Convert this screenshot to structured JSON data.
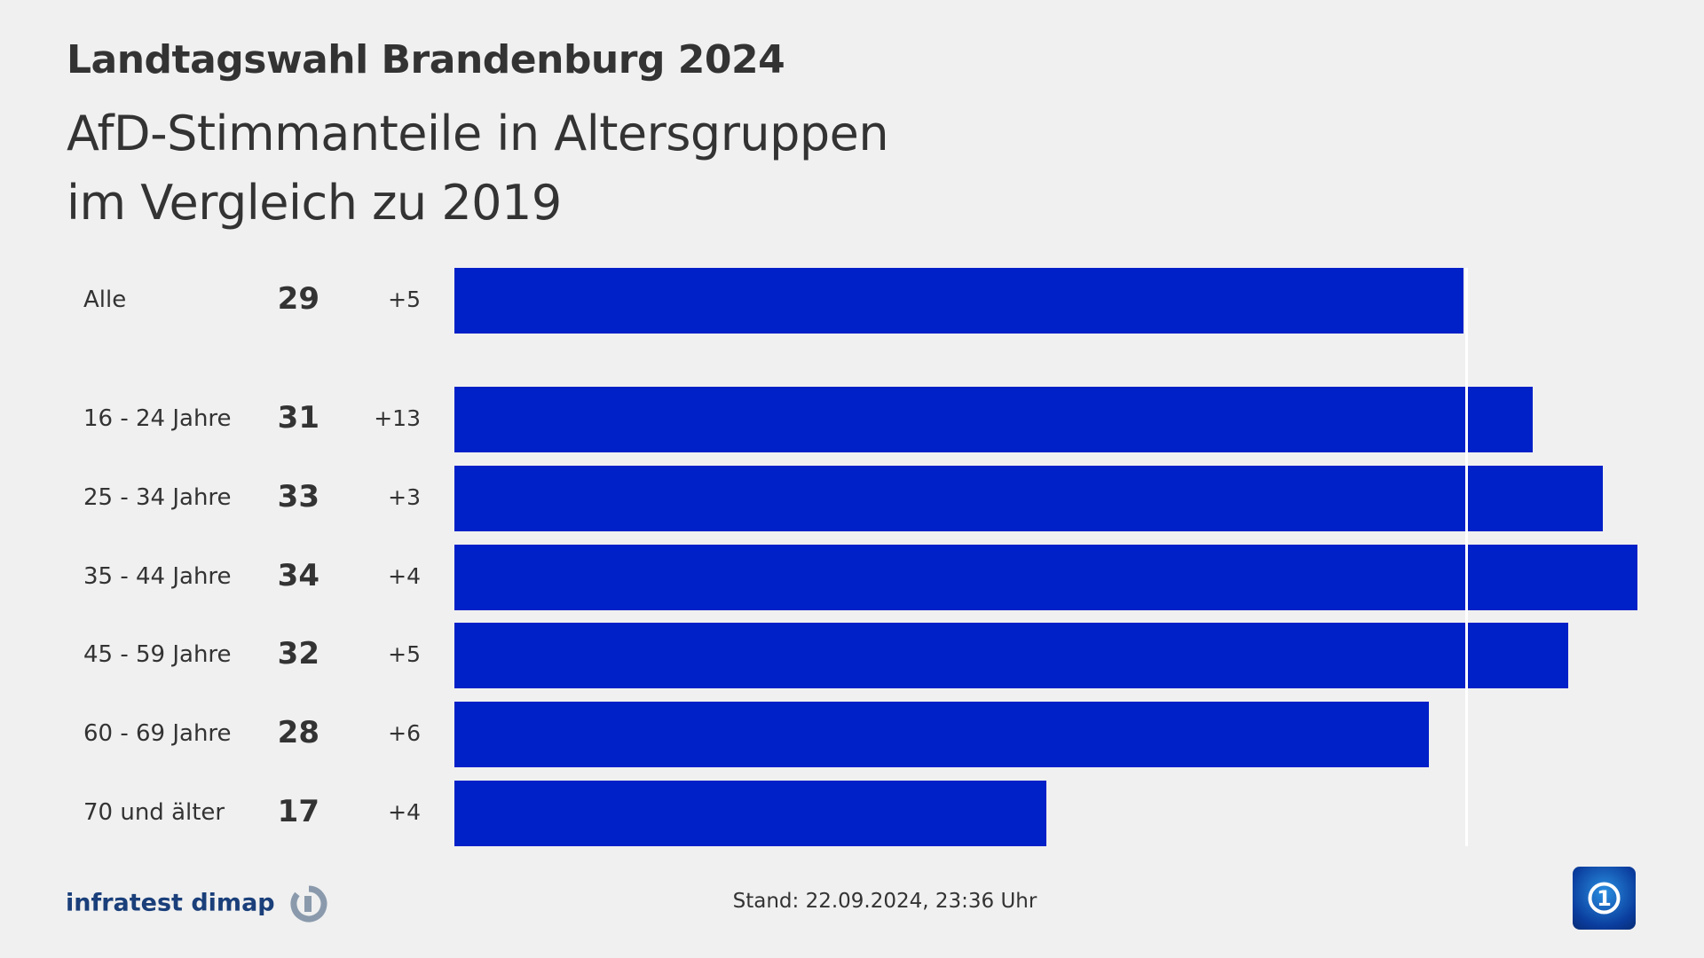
{
  "header": {
    "title": "Landtagswahl Brandenburg 2024",
    "subtitle_lines": [
      "AfD-Stimmanteile in Altersgruppen",
      "im Vergleich zu 2019"
    ]
  },
  "chart_data": {
    "type": "bar",
    "orientation": "horizontal",
    "categories": [
      "Alle",
      "16 - 24 Jahre",
      "25 - 34 Jahre",
      "35 - 44 Jahre",
      "45 - 59 Jahre",
      "60 - 69 Jahre",
      "70 und älter"
    ],
    "values": [
      29,
      31,
      33,
      34,
      32,
      28,
      17
    ],
    "changes": [
      "+5",
      "+13",
      "+3",
      "+4",
      "+5",
      "+6",
      "+4"
    ],
    "reference_line": 29,
    "xlim": [
      0,
      34
    ],
    "grid": false,
    "bar_color": "#0020c8",
    "reference_color": "#ffffff"
  },
  "footer": {
    "source": "infratest dimap",
    "stand": "Stand:  22.09.2024, 23:36 Uhr"
  }
}
